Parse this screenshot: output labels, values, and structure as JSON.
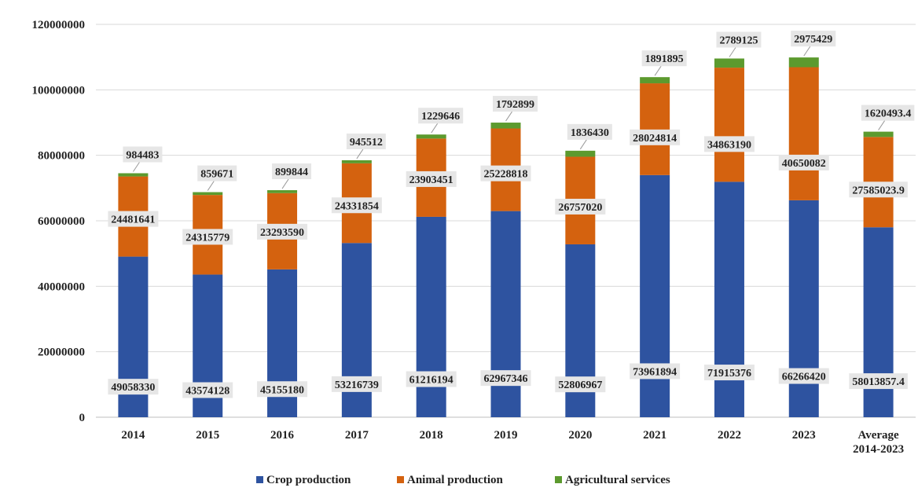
{
  "chart_data": {
    "type": "bar",
    "stacked": true,
    "categories": [
      "2014",
      "2015",
      "2016",
      "2017",
      "2018",
      "2019",
      "2020",
      "2021",
      "2022",
      "2023",
      "Average 2014-2023"
    ],
    "category_lines": [
      [
        "2014"
      ],
      [
        "2015"
      ],
      [
        "2016"
      ],
      [
        "2017"
      ],
      [
        "2018"
      ],
      [
        "2019"
      ],
      [
        "2020"
      ],
      [
        "2021"
      ],
      [
        "2022"
      ],
      [
        "2023"
      ],
      [
        "Average",
        "2014-2023"
      ]
    ],
    "series": [
      {
        "name": "Crop production",
        "color": "#2E53A0",
        "values": [
          49058330,
          43574128,
          45155180,
          53216739,
          61216194,
          62967346,
          52806967,
          73961894,
          71915376,
          66266420,
          58013857.4
        ]
      },
      {
        "name": "Animal production",
        "color": "#D4620F",
        "values": [
          24481641,
          24315779,
          23293590,
          24331854,
          23903451,
          25228818,
          26757020,
          28024814,
          34863190,
          40650082,
          27585023.9
        ]
      },
      {
        "name": "Agricultural services",
        "color": "#5C9A2E",
        "values": [
          984483,
          859671,
          899844,
          945512,
          1229646,
          1792899,
          1836430,
          1891895,
          2789125,
          2975429,
          1620493.4
        ]
      }
    ],
    "ylim": [
      0,
      120000000
    ],
    "yticks": [
      0,
      20000000,
      40000000,
      60000000,
      80000000,
      100000000,
      120000000
    ],
    "ytick_labels": [
      "0",
      "20000000",
      "40000000",
      "60000000",
      "80000000",
      "100000000",
      "120000000"
    ],
    "data_labels": [
      [
        "49058330",
        "43574128",
        "45155180",
        "53216739",
        "61216194",
        "62967346",
        "52806967",
        "73961894",
        "71915376",
        "66266420",
        "58013857.4"
      ],
      [
        "24481641",
        "24315779",
        "23293590",
        "24331854",
        "23903451",
        "25228818",
        "26757020",
        "28024814",
        "34863190",
        "40650082",
        "27585023.9"
      ],
      [
        "984483",
        "859671",
        "899844",
        "945512",
        "1229646",
        "1792899",
        "1836430",
        "1891895",
        "2789125",
        "2975429",
        "1620493.4"
      ]
    ],
    "title": "",
    "xlabel": "",
    "ylabel": "",
    "grid": true,
    "legend_position": "bottom",
    "gridline_color": "#d9d9d9",
    "label_box_color": "#e6e6e6"
  }
}
